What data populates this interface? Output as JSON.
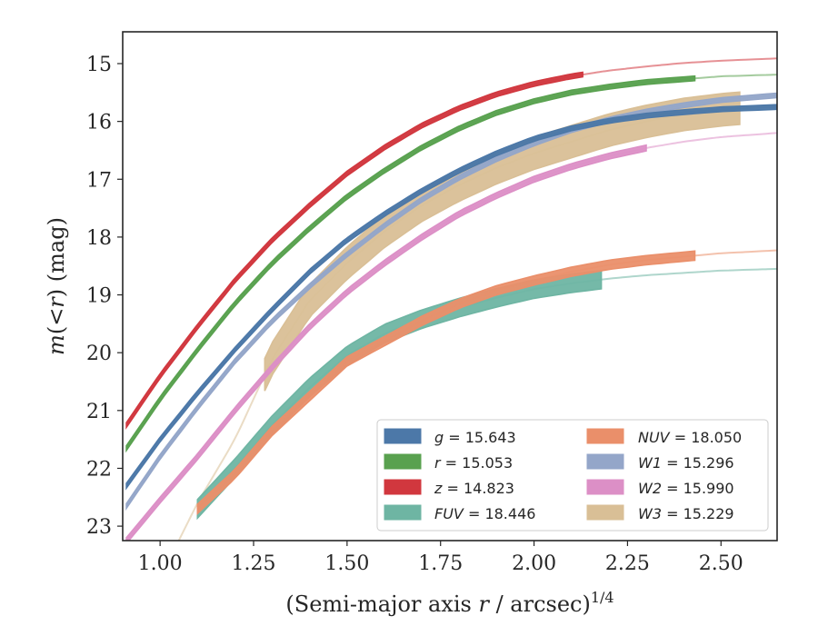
{
  "chart_data": {
    "type": "line",
    "xlabel_main": "(Semi-major axis ",
    "xlabel_var": "r",
    "xlabel_unit": " / arcsec)",
    "xlabel_sup": "1/4",
    "ylabel_var1": "m",
    "ylabel_mid": "(<",
    "ylabel_var2": "r",
    "ylabel_end": ") (mag)",
    "xlim": [
      0.9,
      2.65
    ],
    "ylim": [
      23.25,
      14.45
    ],
    "y_inverted": true,
    "xticks": [
      "1.00",
      "1.25",
      "1.50",
      "1.75",
      "2.00",
      "2.25",
      "2.50"
    ],
    "xtick_values": [
      1.0,
      1.25,
      1.5,
      1.75,
      2.0,
      2.25,
      2.5
    ],
    "yticks": [
      "15",
      "16",
      "17",
      "18",
      "19",
      "20",
      "21",
      "22",
      "23"
    ],
    "ytick_values": [
      15,
      16,
      17,
      18,
      19,
      20,
      21,
      22,
      23
    ],
    "grid": false,
    "legend_position": "lower-right",
    "legend_columns": 2,
    "series": [
      {
        "key": "g",
        "label_var": "g",
        "label_value": "= 15.643",
        "color": "#4c78a8",
        "x": [
          0.91,
          1.0,
          1.1,
          1.2,
          1.3,
          1.4,
          1.5,
          1.6,
          1.7,
          1.8,
          1.9,
          2.0,
          2.1,
          2.2,
          2.3,
          2.4,
          2.5,
          2.65
        ],
        "y": [
          22.3,
          21.5,
          20.7,
          19.95,
          19.25,
          18.6,
          18.05,
          17.6,
          17.2,
          16.85,
          16.55,
          16.3,
          16.12,
          15.99,
          15.9,
          15.84,
          15.79,
          15.75
        ],
        "measured_until": 2.65,
        "band": 0.04
      },
      {
        "key": "r",
        "label_var": "r",
        "label_value": "= 15.053",
        "color": "#59a14f",
        "x": [
          0.91,
          1.0,
          1.1,
          1.2,
          1.3,
          1.4,
          1.5,
          1.6,
          1.7,
          1.8,
          1.9,
          2.0,
          2.1,
          2.2,
          2.3,
          2.4,
          2.5,
          2.65
        ],
        "y": [
          21.65,
          20.8,
          19.95,
          19.15,
          18.45,
          17.85,
          17.3,
          16.85,
          16.45,
          16.12,
          15.85,
          15.65,
          15.5,
          15.4,
          15.32,
          15.27,
          15.22,
          15.19
        ],
        "measured_until": 2.43,
        "band": 0.04
      },
      {
        "key": "z",
        "label_var": "z",
        "label_value": "= 14.823",
        "color": "#d1373e",
        "x": [
          0.91,
          1.0,
          1.1,
          1.2,
          1.3,
          1.4,
          1.5,
          1.6,
          1.7,
          1.8,
          1.9,
          2.0,
          2.1,
          2.2,
          2.3,
          2.4,
          2.5,
          2.65
        ],
        "y": [
          21.25,
          20.4,
          19.55,
          18.75,
          18.05,
          17.45,
          16.9,
          16.45,
          16.07,
          15.77,
          15.53,
          15.35,
          15.22,
          15.12,
          15.05,
          14.99,
          14.95,
          14.91
        ],
        "measured_until": 2.13,
        "band": 0.04
      },
      {
        "key": "FUV",
        "label_var": "FUV",
        "label_value": "= 18.446",
        "color": "#6eb5a3",
        "x": [
          1.1,
          1.2,
          1.3,
          1.4,
          1.5,
          1.6,
          1.7,
          1.8,
          1.9,
          2.0,
          2.1,
          2.2,
          2.3,
          2.4,
          2.5,
          2.65
        ],
        "y": [
          22.7,
          22.0,
          21.25,
          20.6,
          20.05,
          19.67,
          19.42,
          19.22,
          19.05,
          18.9,
          18.8,
          18.72,
          18.66,
          18.62,
          18.58,
          18.55
        ],
        "measured_until": 2.18,
        "band": 0.16
      },
      {
        "key": "NUV",
        "label_var": "NUV",
        "label_value": "= 18.050",
        "color": "#ea8f6a",
        "x": [
          1.1,
          1.2,
          1.3,
          1.4,
          1.5,
          1.6,
          1.7,
          1.8,
          1.9,
          2.0,
          2.1,
          2.2,
          2.3,
          2.4,
          2.5,
          2.65
        ],
        "y": [
          22.7,
          22.1,
          21.35,
          20.75,
          20.15,
          19.8,
          19.45,
          19.15,
          18.92,
          18.75,
          18.6,
          18.48,
          18.4,
          18.34,
          18.28,
          18.23
        ],
        "measured_until": 2.43,
        "band": 0.08
      },
      {
        "key": "W1",
        "label_var": "W1",
        "label_value": "= 15.296",
        "color": "#94a6c9",
        "x": [
          0.91,
          1.0,
          1.1,
          1.2,
          1.3,
          1.4,
          1.5,
          1.6,
          1.7,
          1.8,
          1.9,
          2.0,
          2.1,
          2.2,
          2.3,
          2.4,
          2.5,
          2.65
        ],
        "y": [
          22.65,
          21.8,
          20.95,
          20.15,
          19.45,
          18.85,
          18.3,
          17.8,
          17.35,
          16.97,
          16.65,
          16.38,
          16.15,
          15.97,
          15.83,
          15.72,
          15.63,
          15.55
        ],
        "measured_until": 2.65,
        "band": 0.04
      },
      {
        "key": "W2",
        "label_var": "W2",
        "label_value": "= 15.990",
        "color": "#dc8fc6",
        "x": [
          0.91,
          1.0,
          1.1,
          1.2,
          1.3,
          1.4,
          1.5,
          1.6,
          1.7,
          1.8,
          1.9,
          2.0,
          2.1,
          2.2,
          2.3,
          2.4,
          2.5,
          2.65
        ],
        "y": [
          23.25,
          22.55,
          21.8,
          21.0,
          20.25,
          19.55,
          18.95,
          18.45,
          18.0,
          17.6,
          17.28,
          17.0,
          16.78,
          16.6,
          16.46,
          16.35,
          16.27,
          16.2
        ],
        "measured_until": 2.3,
        "band": 0.05
      },
      {
        "key": "W3",
        "label_var": "W3",
        "label_value": "= 15.229",
        "color": "#d9bf96",
        "x": [
          1.05,
          1.1,
          1.2,
          1.3,
          1.4,
          1.5,
          1.6,
          1.7,
          1.8,
          1.9,
          2.0,
          2.1,
          2.2,
          2.3,
          2.4,
          2.5,
          2.65
        ],
        "y": [
          23.25,
          22.6,
          21.5,
          20.1,
          19.1,
          18.45,
          17.9,
          17.45,
          17.1,
          16.8,
          16.55,
          16.35,
          16.15,
          16.0,
          15.88,
          15.8,
          15.72
        ],
        "measured_from": 1.28,
        "measured_until": 2.55,
        "band": 0.28
      }
    ]
  }
}
